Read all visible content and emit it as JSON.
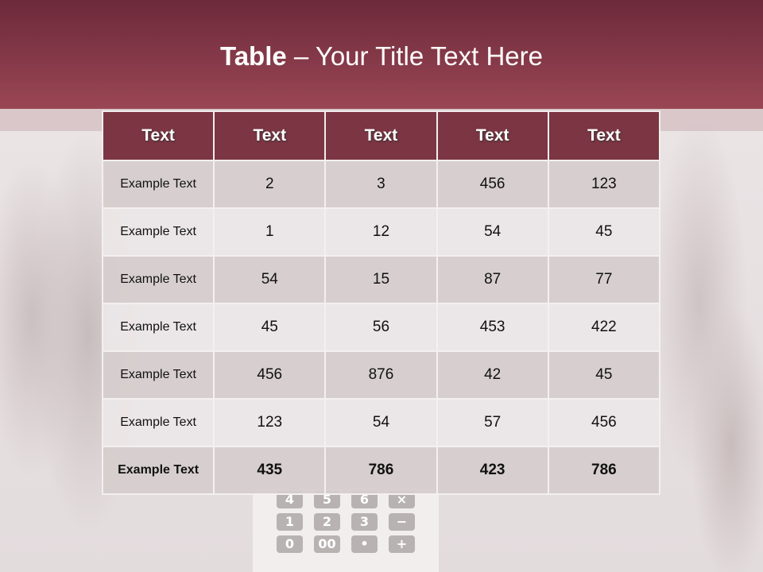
{
  "title": {
    "bold": "Table",
    "rest": " – Your Title Text Here"
  },
  "table": {
    "headers": [
      "Text",
      "Text",
      "Text",
      "Text",
      "Text"
    ],
    "rows": [
      [
        "Example Text",
        "2",
        "3",
        "456",
        "123"
      ],
      [
        "Example Text",
        "1",
        "12",
        "54",
        "45"
      ],
      [
        "Example Text",
        "54",
        "15",
        "87",
        "77"
      ],
      [
        "Example Text",
        "45",
        "56",
        "453",
        "422"
      ],
      [
        "Example Text",
        "456",
        "876",
        "42",
        "45"
      ],
      [
        "Example Text",
        "123",
        "54",
        "57",
        "456"
      ],
      [
        "Example Text",
        "435",
        "786",
        "423",
        "786"
      ]
    ]
  },
  "calculator_keys": [
    "4",
    "5",
    "6",
    "×",
    "1",
    "2",
    "3",
    "−",
    "0",
    "00",
    "•",
    "+"
  ],
  "colors": {
    "banner": "#7c3542",
    "header": "#7c3542",
    "row_dark": "#d6cdce",
    "row_light": "#ebe6e7"
  }
}
